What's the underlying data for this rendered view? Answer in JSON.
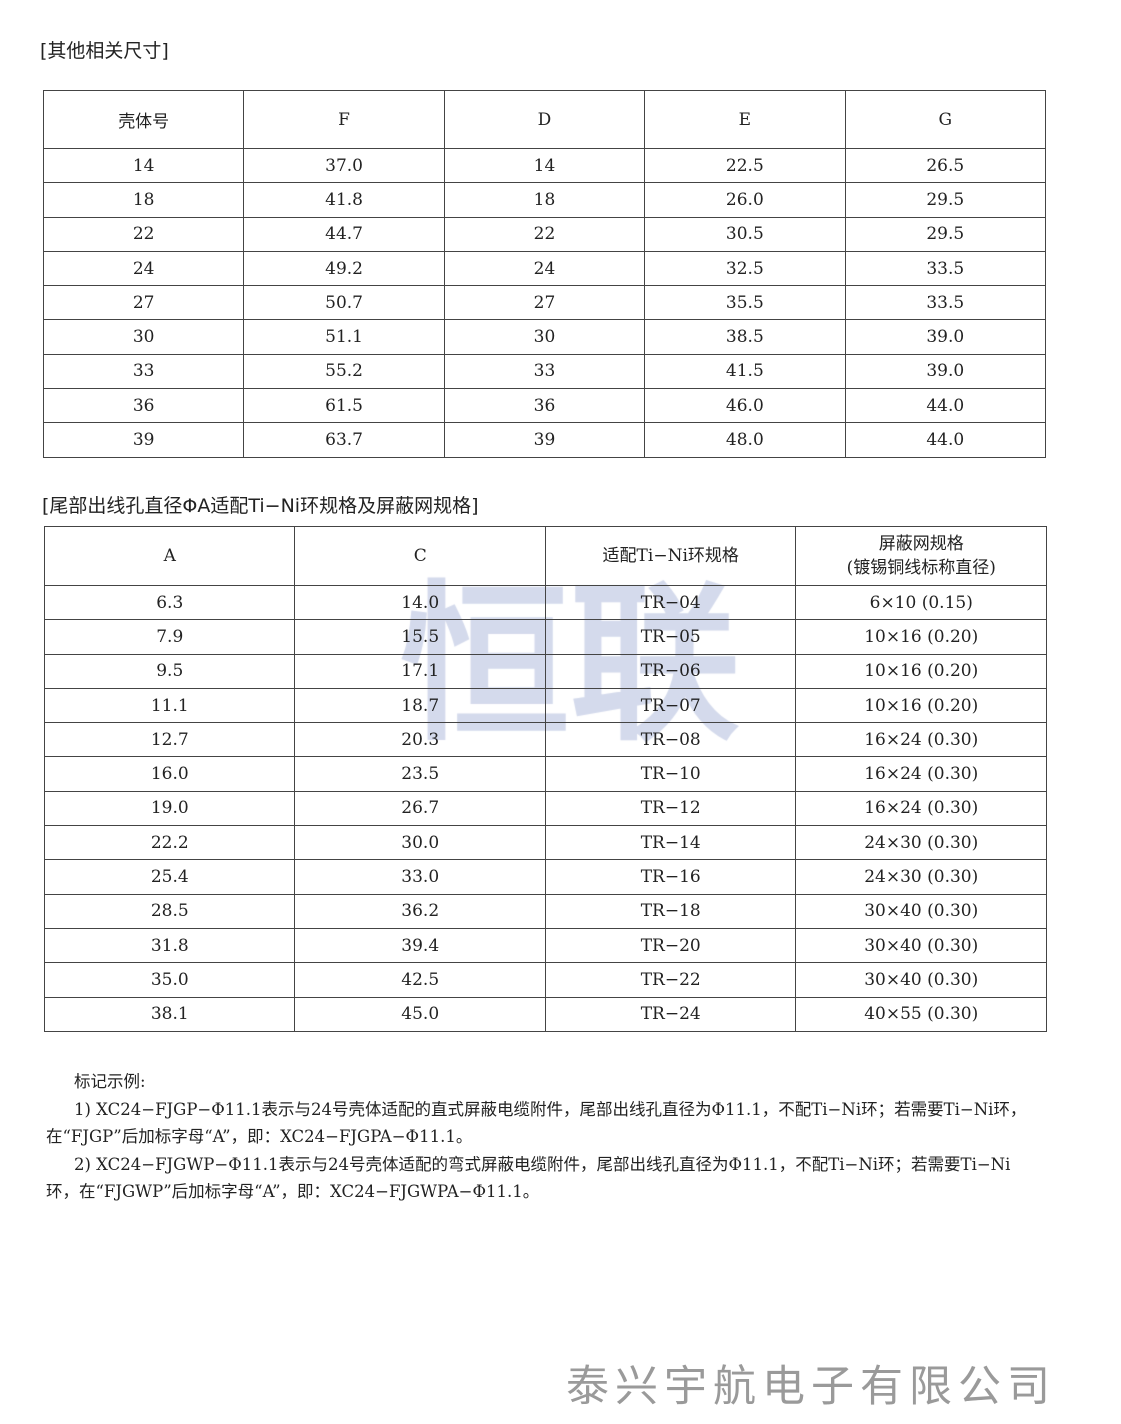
{
  "section1": {
    "title": "[其他相关尺寸]",
    "headers": [
      "壳体号",
      "F",
      "D",
      "E",
      "G"
    ],
    "rows": [
      [
        "14",
        "37.0",
        "14",
        "22.5",
        "26.5"
      ],
      [
        "18",
        "41.8",
        "18",
        "26.0",
        "29.5"
      ],
      [
        "22",
        "44.7",
        "22",
        "30.5",
        "29.5"
      ],
      [
        "24",
        "49.2",
        "24",
        "32.5",
        "33.5"
      ],
      [
        "27",
        "50.7",
        "27",
        "35.5",
        "33.5"
      ],
      [
        "30",
        "51.1",
        "30",
        "38.5",
        "39.0"
      ],
      [
        "33",
        "55.2",
        "33",
        "41.5",
        "39.0"
      ],
      [
        "36",
        "61.5",
        "36",
        "46.0",
        "44.0"
      ],
      [
        "39",
        "63.7",
        "39",
        "48.0",
        "44.0"
      ]
    ]
  },
  "section2": {
    "title": "[尾部出线孔直径ΦA适配Ti−Ni环规格及屏蔽网规格]",
    "headers": [
      "A",
      "C",
      "适配Ti−Ni环规格",
      "屏蔽网规格",
      "(镀锡铜线标称直径)"
    ],
    "rows": [
      [
        "6.3",
        "14.0",
        "TR−04",
        "6×10 (0.15)"
      ],
      [
        "7.9",
        "15.5",
        "TR−05",
        "10×16 (0.20)"
      ],
      [
        "9.5",
        "17.1",
        "TR−06",
        "10×16 (0.20)"
      ],
      [
        "11.1",
        "18.7",
        "TR−07",
        "10×16 (0.20)"
      ],
      [
        "12.7",
        "20.3",
        "TR−08",
        "16×24 (0.30)"
      ],
      [
        "16.0",
        "23.5",
        "TR−10",
        "16×24 (0.30)"
      ],
      [
        "19.0",
        "26.7",
        "TR−12",
        "16×24 (0.30)"
      ],
      [
        "22.2",
        "30.0",
        "TR−14",
        "24×30 (0.30)"
      ],
      [
        "25.4",
        "33.0",
        "TR−16",
        "24×30 (0.30)"
      ],
      [
        "28.5",
        "36.2",
        "TR−18",
        "30×40 (0.30)"
      ],
      [
        "31.8",
        "39.4",
        "TR−20",
        "30×40 (0.30)"
      ],
      [
        "35.0",
        "42.5",
        "TR−22",
        "30×40 (0.30)"
      ],
      [
        "38.1",
        "45.0",
        "TR−24",
        "40×55 (0.30)"
      ]
    ]
  },
  "watermark": "恒联",
  "notes": {
    "heading": "标记示例:",
    "items": [
      "1) XC24−FJGP−Φ11.1表示与24号壳体适配的直式屏蔽电缆附件，尾部出线孔直径为Φ11.1，不配Ti−Ni环；若需要Ti−Ni环，在“FJGP”后加标字母“A”，即：XC24−FJGPA−Φ11.1。",
      "2) XC24−FJGWP−Φ11.1表示与24号壳体适配的弯式屏蔽电缆附件，尾部出线孔直径为Φ11.1，不配Ti−Ni环；若需要Ti−Ni环，在“FJGWP”后加标字母“A”，即：XC24−FJGWPA−Φ11.1。"
    ]
  },
  "footer": "泰兴宇航电子有限公司"
}
